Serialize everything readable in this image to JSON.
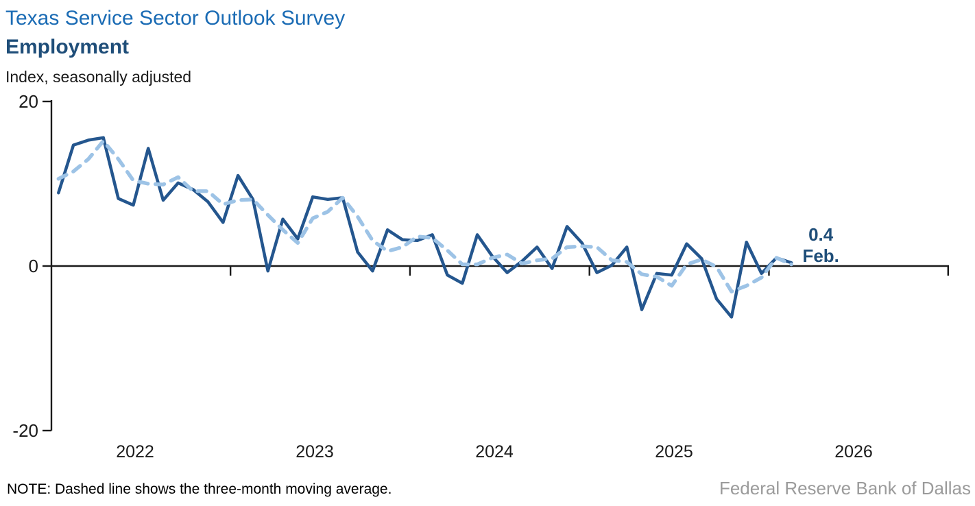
{
  "header": {
    "title": "Texas Service Sector Outlook Survey",
    "subtitle": "Employment",
    "units": "Index, seasonally adjusted"
  },
  "footer": {
    "note": "NOTE: Dashed line shows the three-month moving average.",
    "source": "Federal Reserve Bank of Dallas"
  },
  "colors": {
    "title_blue": "#1a6bb4",
    "navy": "#1f4e79",
    "solid_line": "#24568e",
    "dashed_line": "#9dc3e6",
    "axis": "#1a1a1a",
    "source_gray": "#9b9b9b"
  },
  "chart_data": {
    "type": "line",
    "title": "Texas Service Sector Outlook Survey — Employment",
    "ylabel": "Index, seasonally adjusted",
    "ylim": [
      -20,
      20
    ],
    "y_ticks": [
      20,
      0,
      -20
    ],
    "x_year_labels": [
      "2022",
      "2023",
      "2024",
      "2025",
      "2026"
    ],
    "start_month": "2022-01",
    "end_month": "2026-02",
    "grid": false,
    "legend_position": "none",
    "series": [
      {
        "name": "Employment index",
        "style": "solid",
        "values": [
          8.9,
          14.7,
          15.3,
          15.6,
          8.2,
          7.4,
          14.3,
          8.0,
          10.1,
          9.3,
          7.8,
          5.3,
          11.0,
          8.1,
          -0.6,
          5.7,
          3.3,
          8.4,
          8.1,
          8.3,
          1.7,
          -0.6,
          4.4,
          3.2,
          3.1,
          3.8,
          -1.1,
          -2.1,
          3.8,
          1.2,
          -0.8,
          0.6,
          2.3,
          -0.3,
          4.8,
          2.8,
          -0.8,
          0.1,
          2.3,
          -5.3,
          -0.9,
          -1.1,
          2.7,
          0.9,
          -4.0,
          -6.2,
          2.9,
          -0.9,
          1.0,
          0.4
        ]
      },
      {
        "name": "Three-month moving average",
        "style": "dashed",
        "values": [
          10.6,
          11.5,
          13.0,
          15.2,
          13.0,
          10.4,
          10.0,
          9.9,
          10.8,
          9.1,
          9.1,
          7.5,
          8.0,
          8.1,
          6.2,
          4.4,
          2.8,
          5.8,
          6.6,
          8.3,
          6.0,
          3.1,
          1.8,
          2.3,
          3.6,
          3.4,
          1.9,
          0.2,
          0.2,
          1.0,
          1.4,
          0.3,
          0.7,
          0.9,
          2.3,
          2.4,
          2.3,
          0.7,
          0.5,
          -1.0,
          -1.3,
          -2.4,
          0.2,
          0.8,
          -0.1,
          -3.1,
          -2.4,
          -1.4,
          1.0,
          0.2
        ]
      }
    ],
    "last_point_label": {
      "value_label": "0.4",
      "month_label": "Feb."
    }
  }
}
